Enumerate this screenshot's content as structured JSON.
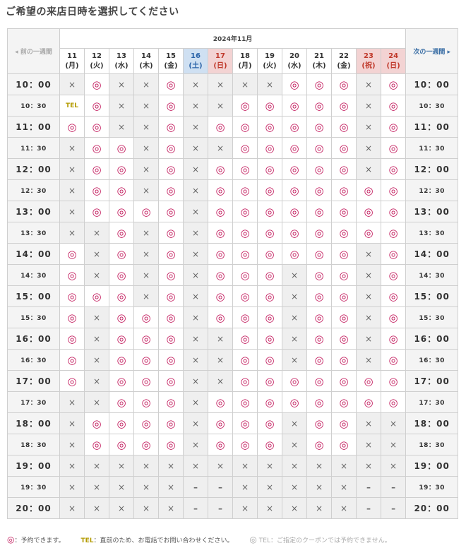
{
  "page_title": "ご希望の来店日時を選択してください",
  "nav": {
    "prev": "◂ 前の一週間",
    "next": "次の一週間 ▸"
  },
  "month": "2024年11月",
  "days": [
    {
      "date": "11",
      "wd": "(月)",
      "type": "normal"
    },
    {
      "date": "12",
      "wd": "(火)",
      "type": "normal"
    },
    {
      "date": "13",
      "wd": "(水)",
      "type": "normal"
    },
    {
      "date": "14",
      "wd": "(木)",
      "type": "normal"
    },
    {
      "date": "15",
      "wd": "(金)",
      "type": "normal"
    },
    {
      "date": "16",
      "wd": "(土)",
      "type": "sat"
    },
    {
      "date": "17",
      "wd": "(日)",
      "type": "hol"
    },
    {
      "date": "18",
      "wd": "(月)",
      "type": "normal"
    },
    {
      "date": "19",
      "wd": "(火)",
      "type": "normal"
    },
    {
      "date": "20",
      "wd": "(水)",
      "type": "normal"
    },
    {
      "date": "21",
      "wd": "(木)",
      "type": "normal"
    },
    {
      "date": "22",
      "wd": "(金)",
      "type": "normal"
    },
    {
      "date": "23",
      "wd": "(祝)",
      "type": "hol"
    },
    {
      "date": "24",
      "wd": "(日)",
      "type": "hol"
    }
  ],
  "symbols": {
    "ok": "◎",
    "ng": "×",
    "dash": "–",
    "tel": "TEL"
  },
  "rows": [
    {
      "time": "10：00",
      "size": "big",
      "cells": [
        "x",
        "o",
        "x",
        "x",
        "o",
        "x",
        "x",
        "x",
        "x",
        "o",
        "o",
        "o",
        "x",
        "o"
      ]
    },
    {
      "time": "10：30",
      "size": "small",
      "cells": [
        "T",
        "o",
        "x",
        "x",
        "o",
        "x",
        "x",
        "o",
        "o",
        "o",
        "o",
        "o",
        "x",
        "o"
      ]
    },
    {
      "time": "11：00",
      "size": "big",
      "cells": [
        "o",
        "o",
        "x",
        "x",
        "o",
        "x",
        "o",
        "o",
        "o",
        "o",
        "o",
        "o",
        "x",
        "o"
      ]
    },
    {
      "time": "11：30",
      "size": "small",
      "cells": [
        "x",
        "o",
        "o",
        "x",
        "o",
        "x",
        "x",
        "o",
        "o",
        "o",
        "o",
        "o",
        "x",
        "o"
      ]
    },
    {
      "time": "12：00",
      "size": "big",
      "cells": [
        "x",
        "o",
        "o",
        "x",
        "o",
        "x",
        "o",
        "o",
        "o",
        "o",
        "o",
        "o",
        "x",
        "o"
      ]
    },
    {
      "time": "12：30",
      "size": "small",
      "cells": [
        "x",
        "o",
        "o",
        "x",
        "o",
        "x",
        "o",
        "o",
        "o",
        "o",
        "o",
        "o",
        "o",
        "o"
      ]
    },
    {
      "time": "13：00",
      "size": "big",
      "cells": [
        "x",
        "o",
        "o",
        "o",
        "o",
        "x",
        "o",
        "o",
        "o",
        "o",
        "o",
        "o",
        "o",
        "o"
      ]
    },
    {
      "time": "13：30",
      "size": "small",
      "cells": [
        "x",
        "x",
        "o",
        "x",
        "o",
        "x",
        "o",
        "o",
        "o",
        "o",
        "o",
        "o",
        "o",
        "o"
      ]
    },
    {
      "time": "14：00",
      "size": "big",
      "cells": [
        "o",
        "x",
        "o",
        "x",
        "o",
        "x",
        "o",
        "o",
        "o",
        "o",
        "o",
        "o",
        "x",
        "o"
      ]
    },
    {
      "time": "14：30",
      "size": "small",
      "cells": [
        "o",
        "x",
        "o",
        "x",
        "o",
        "x",
        "o",
        "o",
        "o",
        "x",
        "o",
        "o",
        "x",
        "o"
      ]
    },
    {
      "time": "15：00",
      "size": "big",
      "cells": [
        "o",
        "o",
        "o",
        "x",
        "o",
        "x",
        "o",
        "o",
        "o",
        "x",
        "o",
        "o",
        "x",
        "o"
      ]
    },
    {
      "time": "15：30",
      "size": "small",
      "cells": [
        "o",
        "x",
        "o",
        "o",
        "o",
        "x",
        "o",
        "o",
        "o",
        "x",
        "o",
        "o",
        "x",
        "o"
      ]
    },
    {
      "time": "16：00",
      "size": "big",
      "cells": [
        "o",
        "x",
        "o",
        "o",
        "o",
        "x",
        "x",
        "o",
        "o",
        "x",
        "o",
        "o",
        "x",
        "o"
      ]
    },
    {
      "time": "16：30",
      "size": "small",
      "cells": [
        "o",
        "x",
        "o",
        "o",
        "o",
        "x",
        "x",
        "o",
        "o",
        "x",
        "o",
        "o",
        "x",
        "o"
      ]
    },
    {
      "time": "17：00",
      "size": "big",
      "cells": [
        "o",
        "x",
        "o",
        "o",
        "o",
        "x",
        "x",
        "o",
        "o",
        "o",
        "o",
        "o",
        "o",
        "o"
      ]
    },
    {
      "time": "17：30",
      "size": "small",
      "cells": [
        "x",
        "x",
        "o",
        "o",
        "o",
        "x",
        "o",
        "o",
        "o",
        "o",
        "o",
        "o",
        "o",
        "o"
      ]
    },
    {
      "time": "18：00",
      "size": "big",
      "cells": [
        "x",
        "o",
        "o",
        "o",
        "o",
        "x",
        "o",
        "o",
        "o",
        "x",
        "o",
        "o",
        "x",
        "x"
      ]
    },
    {
      "time": "18：30",
      "size": "small",
      "cells": [
        "x",
        "o",
        "o",
        "o",
        "o",
        "x",
        "o",
        "o",
        "o",
        "x",
        "o",
        "o",
        "x",
        "x"
      ]
    },
    {
      "time": "19：00",
      "size": "big",
      "cells": [
        "x",
        "x",
        "x",
        "x",
        "x",
        "x",
        "x",
        "x",
        "x",
        "x",
        "x",
        "x",
        "x",
        "x"
      ]
    },
    {
      "time": "19：30",
      "size": "small",
      "cells": [
        "x",
        "x",
        "x",
        "x",
        "x",
        "-",
        "-",
        "x",
        "x",
        "x",
        "x",
        "x",
        "-",
        "-"
      ]
    },
    {
      "time": "20：00",
      "size": "big",
      "cells": [
        "x",
        "x",
        "x",
        "x",
        "x",
        "-",
        "-",
        "x",
        "x",
        "x",
        "x",
        "x",
        "-",
        "-"
      ]
    }
  ],
  "legend": {
    "ok_symbol": "◎",
    "ok_text": "：予約できます。",
    "tel_symbol": "TEL",
    "tel_text": "：直前のため、お電話でお問い合わせください。",
    "coupon_symbol": "◎",
    "coupon_text": "TEL：ご指定のクーポンでは予約できません。"
  },
  "colors": {
    "ok": "#c2185b",
    "tel": "#b39b00",
    "sat_bg": "#cfe0f2",
    "hol_bg": "#f3d3d3",
    "ng_bg": "#efefef"
  }
}
